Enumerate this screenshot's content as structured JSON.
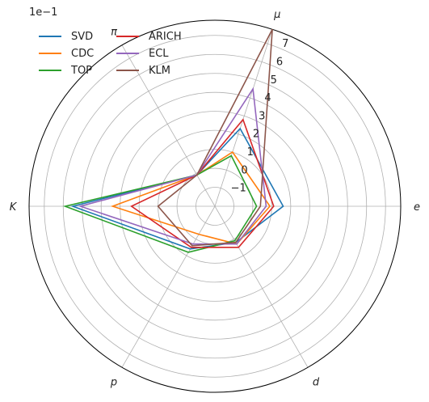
{
  "chart_data": {
    "type": "radar",
    "title": "",
    "scale_label": "1e−1",
    "axes": [
      "e",
      "μ",
      "π",
      "K",
      "p",
      "d"
    ],
    "axis_angles_deg": [
      0,
      72,
      120,
      180,
      240,
      300
    ],
    "r_min": -2,
    "r_max": 7.8,
    "r_ticks": [
      -1,
      0,
      1,
      2,
      3,
      4,
      5,
      6,
      7
    ],
    "grid": true,
    "legend_position": "top-left",
    "series": [
      {
        "name": "SVD",
        "color": "#1f77b4",
        "values": [
          1.6,
          2.3,
          -0.1,
          5.5,
          0.6,
          0.2
        ]
      },
      {
        "name": "CDC",
        "color": "#ff7f0e",
        "values": [
          0.9,
          1.0,
          -0.1,
          3.4,
          -0.3,
          0.3
        ]
      },
      {
        "name": "TOP",
        "color": "#2ca02c",
        "values": [
          0.2,
          0.8,
          -0.1,
          5.9,
          0.8,
          0.1
        ]
      },
      {
        "name": "ARICH",
        "color": "#d62728",
        "values": [
          1.1,
          2.8,
          -0.1,
          2.4,
          0.5,
          0.5
        ]
      },
      {
        "name": "ECL",
        "color": "#9467bd",
        "values": [
          0.7,
          4.5,
          -0.1,
          5.1,
          0.3,
          0.3
        ]
      },
      {
        "name": "KLM",
        "color": "#8c564b",
        "values": [
          0.4,
          7.8,
          -0.1,
          1.0,
          0.4,
          0.2
        ]
      }
    ]
  }
}
